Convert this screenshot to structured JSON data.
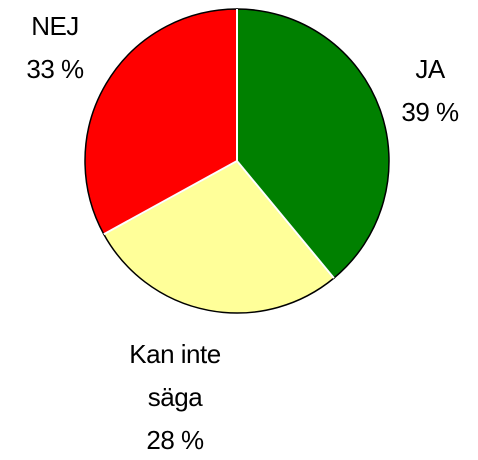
{
  "chart_data": {
    "type": "pie",
    "categories": [
      "JA",
      "Kan inte säga",
      "NEJ"
    ],
    "values": [
      39,
      28,
      33
    ],
    "value_labels": [
      "39 %",
      "28 %",
      "33 %"
    ],
    "colors": [
      "#008000",
      "#ffff99",
      "#ff0000"
    ]
  }
}
